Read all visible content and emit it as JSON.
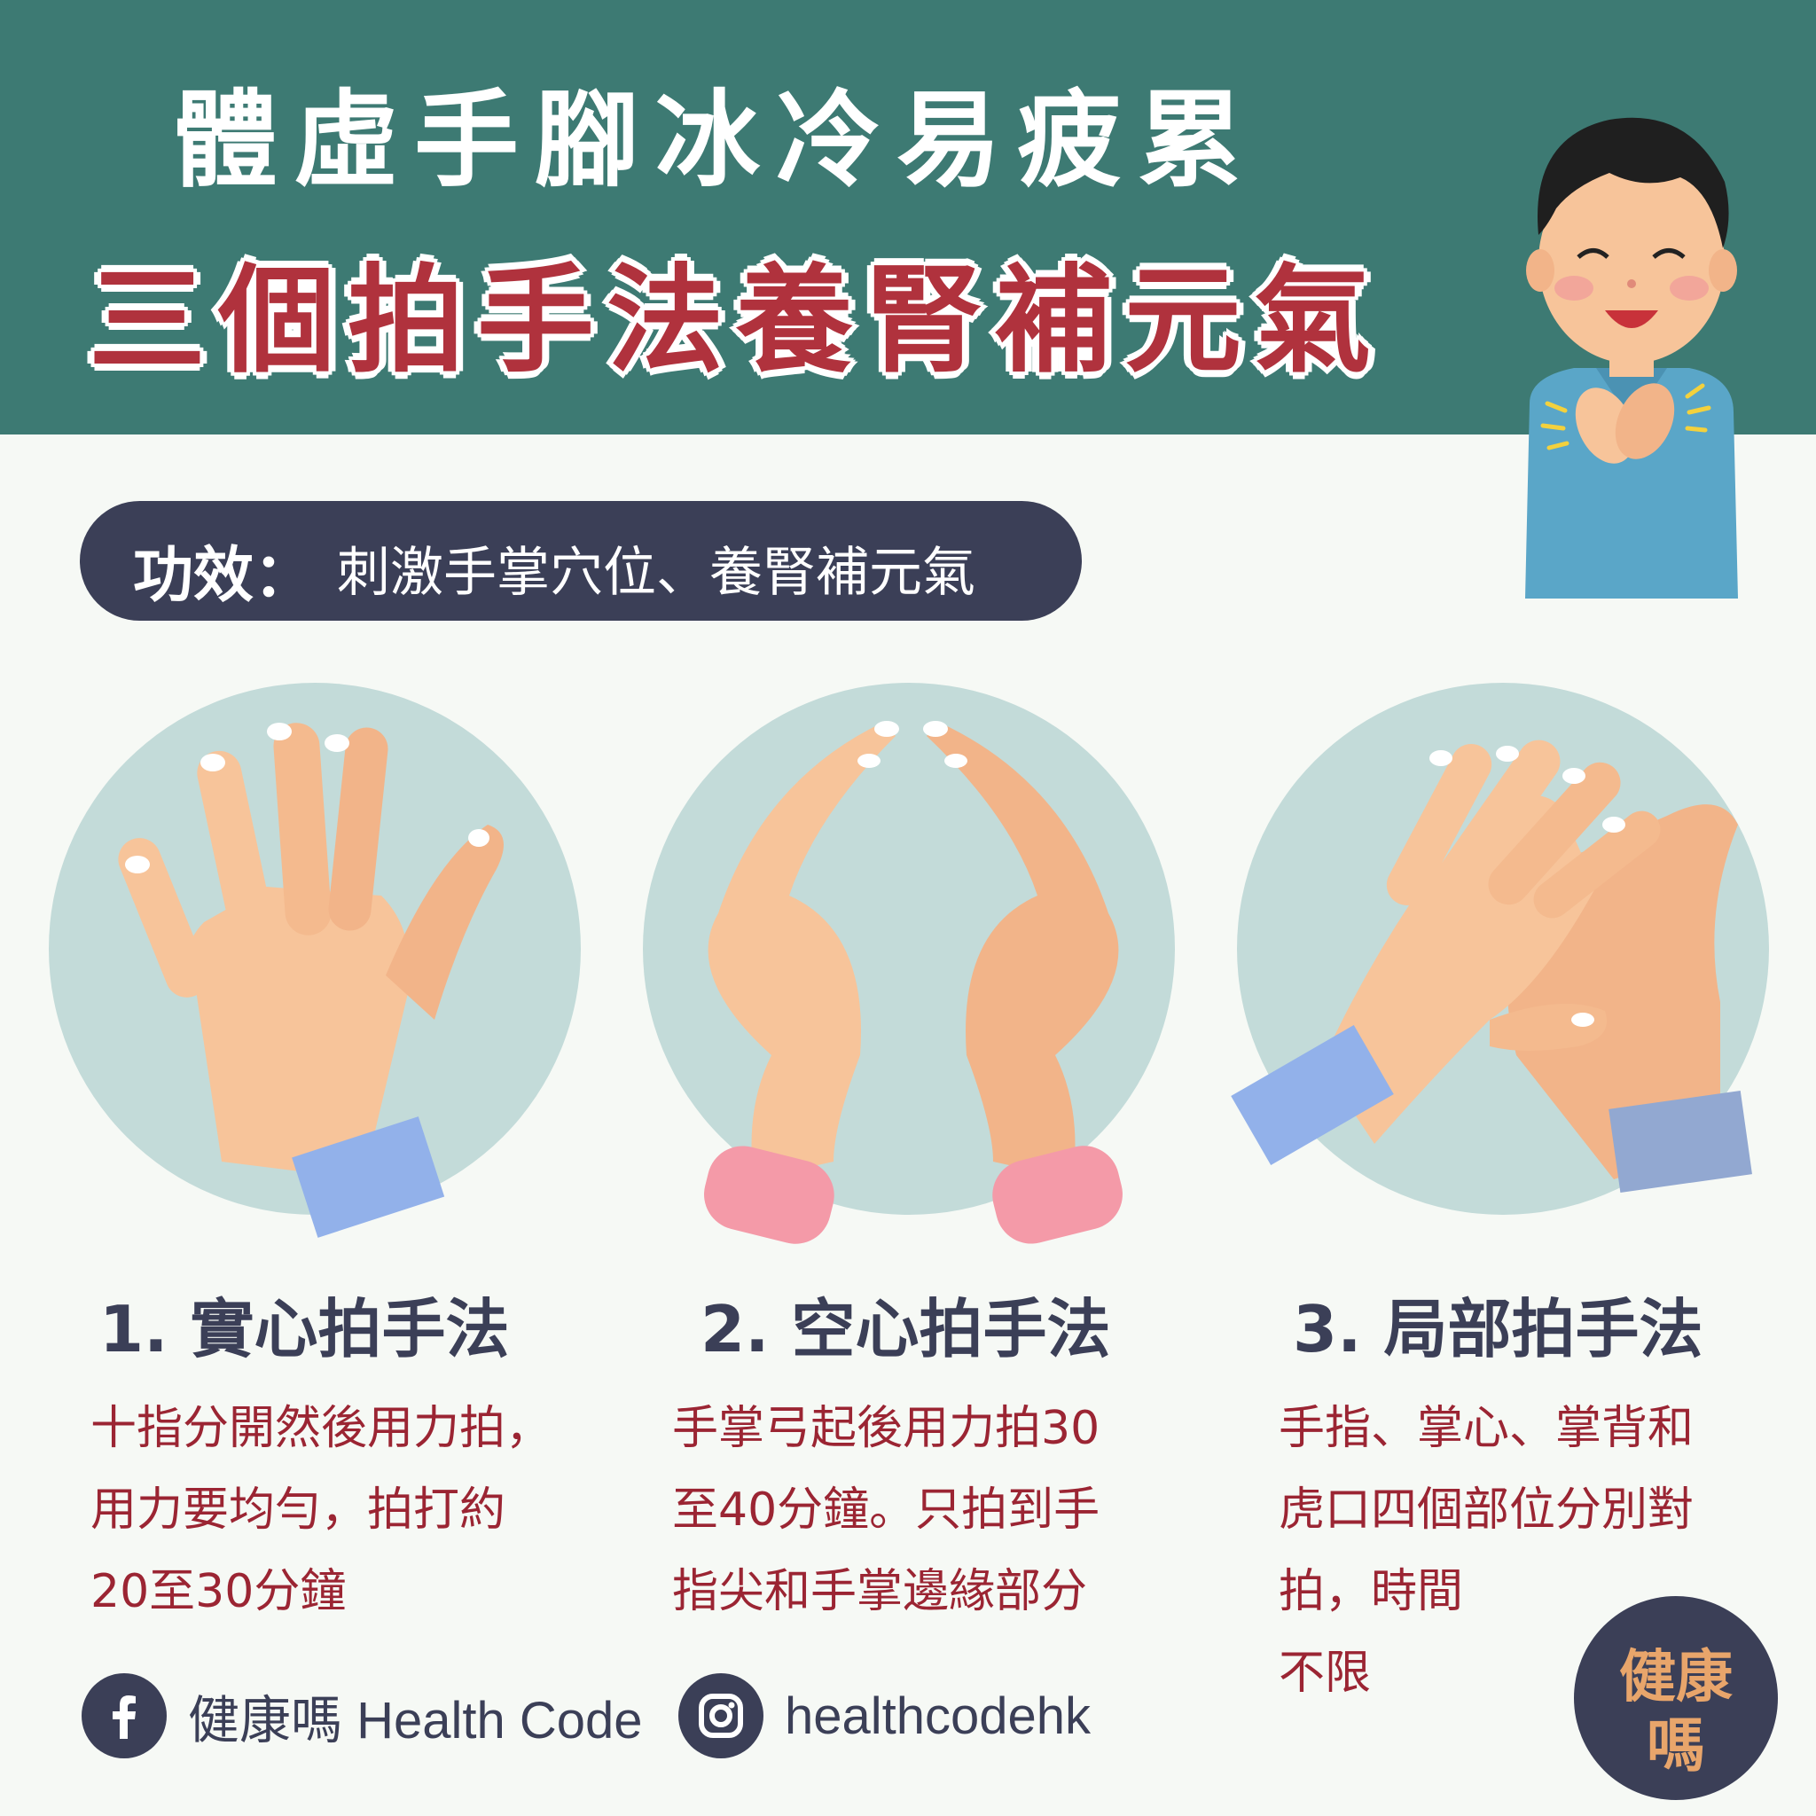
{
  "header": {
    "title_line1": "體虛手腳冰冷易疲累",
    "title_line2": "三個拍手法養腎補元氣"
  },
  "effect": {
    "label": "功效：",
    "text": "刺激手掌穴位、養腎補元氣"
  },
  "methods": [
    {
      "title": "1. 實心拍手法",
      "desc_lines": [
        "十指分開然後用力拍，",
        "用力要均勻，拍打約",
        "20至30分鐘"
      ],
      "cuff_color": "#92b1ea"
    },
    {
      "title": "2. 空心拍手法",
      "desc_lines": [
        "手掌弓起後用力拍30",
        "至40分鐘。只拍到手",
        "指尖和手掌邊緣部分"
      ],
      "cuff_color": "#f49aa8"
    },
    {
      "title": "3. 局部拍手法",
      "desc_lines": [
        "手指、掌心、掌背和",
        "虎口四個部位分別對",
        "拍，時間",
        "不限"
      ],
      "cuff_color": "#92b1ea"
    }
  ],
  "footer": {
    "facebook_icon": "facebook-icon",
    "facebook_text": "健康嗎 Health Code",
    "instagram_icon": "instagram-icon",
    "instagram_text": "healthcodehk"
  },
  "logo": {
    "line1": "健康",
    "line2": "嗎"
  },
  "colors": {
    "header_bg": "#3d7a73",
    "accent_red": "#b0323d",
    "dark_navy": "#3b3f57",
    "circle_bg": "#c3dbd9",
    "skin": "#f7c49a"
  }
}
